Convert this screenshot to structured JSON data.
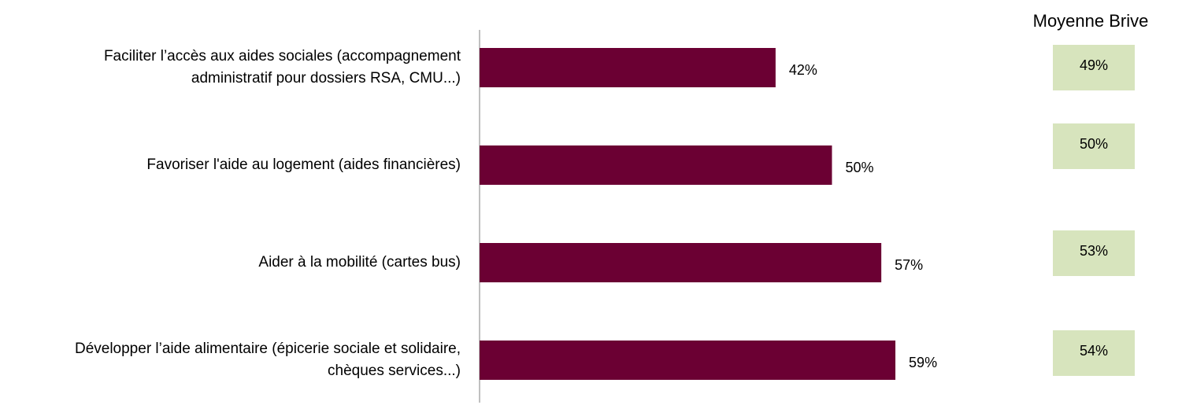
{
  "chart_data": {
    "type": "bar",
    "orientation": "horizontal",
    "categories": [
      "Faciliter l’accès aux aides sociales (accompagnement administratif pour dossiers RSA, CMU...)",
      "Favoriser l'aide au logement (aides financières)",
      "Aider à la mobilité (cartes bus)",
      "Développer l’aide alimentaire (épicerie sociale et solidaire, chèques services...)"
    ],
    "values": [
      42,
      50,
      57,
      59
    ],
    "value_labels": [
      "42%",
      "50%",
      "57%",
      "59%"
    ],
    "color": "#6b0033",
    "xlim": [
      0,
      100
    ],
    "comparison": {
      "name": "Moyenne Brive",
      "values": [
        49,
        50,
        53,
        54
      ],
      "value_labels": [
        "49%",
        "50%",
        "53%",
        "54%"
      ],
      "color": "#d7e4bd"
    }
  }
}
